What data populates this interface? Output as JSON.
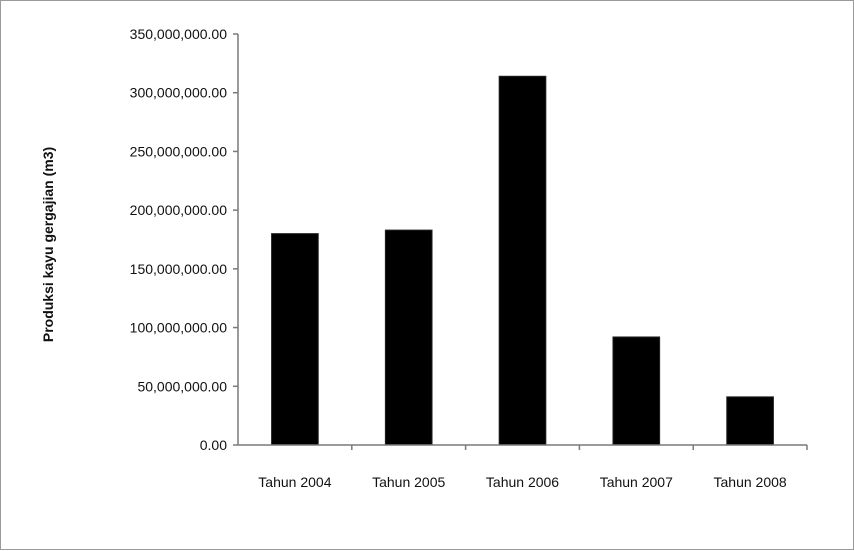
{
  "chart_data": {
    "type": "bar",
    "title": "",
    "xlabel": "",
    "ylabel": "Produksi kayu gergajian (m3)",
    "categories": [
      "Tahun 2004",
      "Tahun 2005",
      "Tahun 2006",
      "Tahun 2007",
      "Tahun 2008"
    ],
    "values": [
      180000000,
      183000000,
      314000000,
      92000000,
      41000000
    ],
    "ylim": [
      0,
      350000000
    ],
    "yticks": [
      0,
      50000000,
      100000000,
      150000000,
      200000000,
      250000000,
      300000000,
      350000000
    ],
    "ytick_labels": [
      "0.00",
      "50,000,000.00",
      "100,000,000.00",
      "150,000,000.00",
      "200,000,000.00",
      "250,000,000.00",
      "300,000,000.00",
      "350,000,000.00"
    ],
    "bar_color": "#000000",
    "grid": false,
    "legend": "none"
  }
}
